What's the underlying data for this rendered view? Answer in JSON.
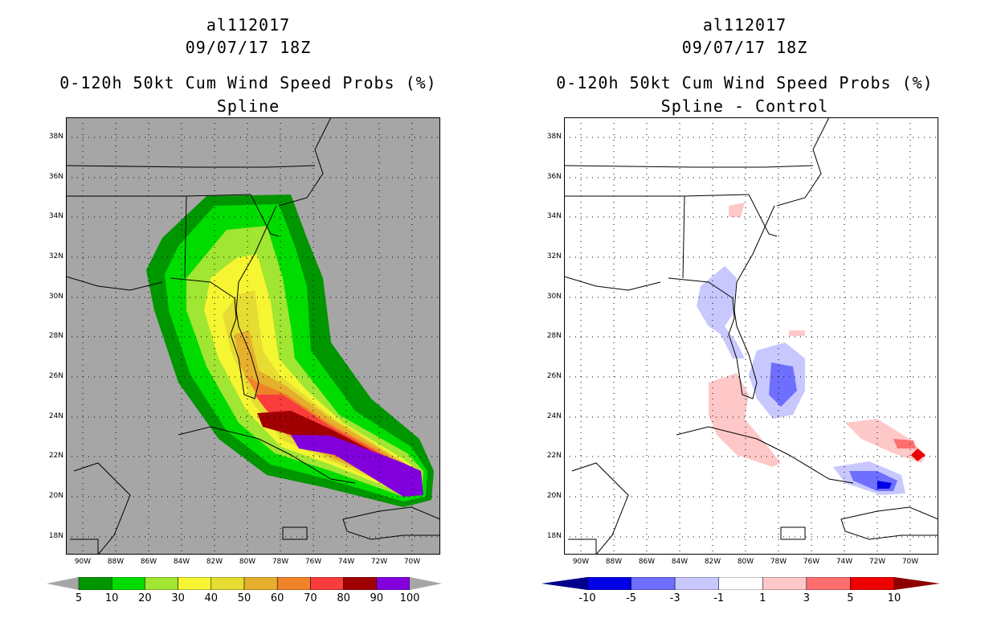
{
  "left_panel": {
    "storm_id": "al112017",
    "datetime": "09/07/17 18Z",
    "product": "0-120h 50kt Cum Wind Speed Probs (%)",
    "subtitle": "Spline",
    "colorbar": {
      "colors": [
        "#009600",
        "#00dc00",
        "#a0e632",
        "#f5f532",
        "#e6dc32",
        "#e6af2d",
        "#f08228",
        "#fa3c3c",
        "#a00000",
        "#8200dc"
      ],
      "labels": [
        "5",
        "10",
        "20",
        "30",
        "40",
        "50",
        "60",
        "70",
        "80",
        "90",
        "100"
      ]
    }
  },
  "right_panel": {
    "storm_id": "al112017",
    "datetime": "09/07/17 18Z",
    "product": "0-120h 50kt Cum Wind Speed Probs (%)",
    "subtitle": "Spline - Control",
    "colorbar": {
      "colors": [
        "#0000e6",
        "#6e6eff",
        "#c8c8ff",
        "#ffffff",
        "#ffc8c8",
        "#ff6e6e",
        "#f00000"
      ],
      "labels": [
        "-10",
        "-5",
        "-3",
        "-1",
        "1",
        "3",
        "5",
        "10"
      ]
    }
  },
  "axes": {
    "lat_labels": [
      "38N",
      "36N",
      "34N",
      "32N",
      "30N",
      "28N",
      "26N",
      "24N",
      "22N",
      "20N",
      "18N"
    ],
    "lon_labels": [
      "90W",
      "88W",
      "86W",
      "84W",
      "82W",
      "80W",
      "78W",
      "76W",
      "74W",
      "72W",
      "70W"
    ]
  }
}
